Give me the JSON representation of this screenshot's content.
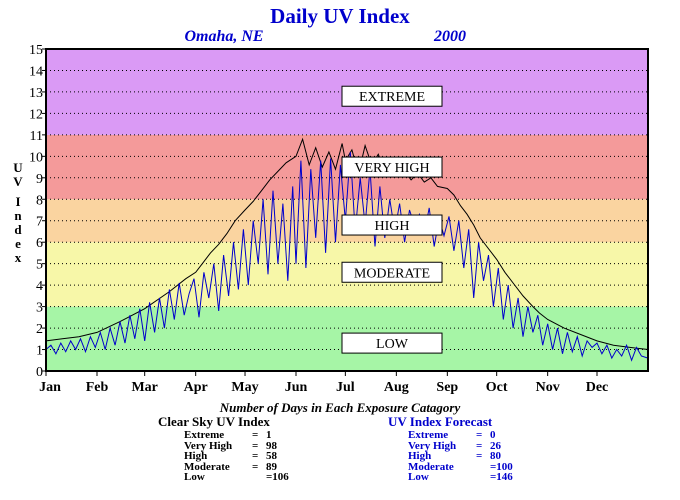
{
  "chart_data": {
    "type": "line",
    "title": "Daily UV Index",
    "location": "Omaha, NE",
    "year": "2000",
    "ylabel": "UV Index",
    "xlabel": "",
    "ylim": [
      0,
      15
    ],
    "xlim": [
      0,
      366
    ],
    "yticks": [
      "0",
      "1",
      "2",
      "3",
      "4",
      "5",
      "6",
      "7",
      "8",
      "9",
      "10",
      "11",
      "12",
      "13",
      "14",
      "15"
    ],
    "months": [
      "Jan",
      "Feb",
      "Mar",
      "Apr",
      "May",
      "Jun",
      "Jul",
      "Aug",
      "Sep",
      "Oct",
      "Nov",
      "Dec"
    ],
    "month_start_days": [
      0,
      31,
      60,
      91,
      121,
      152,
      182,
      213,
      244,
      274,
      305,
      335
    ],
    "bands": [
      {
        "label": "LOW",
        "from": 0,
        "to": 3,
        "color": "#a6f5a6"
      },
      {
        "label": "MODERATE",
        "from": 3,
        "to": 6,
        "color": "#f7f7a8"
      },
      {
        "label": "HIGH",
        "from": 6,
        "to": 8,
        "color": "#fad4a0"
      },
      {
        "label": "VERY HIGH",
        "from": 8,
        "to": 11,
        "color": "#f49a9a"
      },
      {
        "label": "EXTREME",
        "from": 11,
        "to": 15,
        "color": "#da9af5"
      }
    ],
    "band_label_values": {
      "LOW": 1.3,
      "MODERATE": 4.6,
      "HIGH": 6.8,
      "VERY HIGH": 9.5,
      "EXTREME": 12.8
    },
    "grid": true,
    "series": [
      {
        "name": "Clear Sky UV Index",
        "color": "#000000",
        "points": [
          [
            0,
            1.4
          ],
          [
            10,
            1.5
          ],
          [
            20,
            1.6
          ],
          [
            31,
            1.8
          ],
          [
            45,
            2.3
          ],
          [
            60,
            2.9
          ],
          [
            75,
            3.7
          ],
          [
            85,
            4.3
          ],
          [
            91,
            4.6
          ],
          [
            95,
            5.0
          ],
          [
            100,
            5.5
          ],
          [
            105,
            5.9
          ],
          [
            110,
            6.4
          ],
          [
            115,
            7.0
          ],
          [
            121,
            7.5
          ],
          [
            126,
            7.9
          ],
          [
            131,
            8.4
          ],
          [
            136,
            8.9
          ],
          [
            141,
            9.3
          ],
          [
            146,
            9.7
          ],
          [
            152,
            10.0
          ],
          [
            156,
            10.8
          ],
          [
            160,
            9.6
          ],
          [
            164,
            10.4
          ],
          [
            168,
            9.5
          ],
          [
            172,
            10.2
          ],
          [
            176,
            9.4
          ],
          [
            180,
            10.6
          ],
          [
            182,
            9.8
          ],
          [
            186,
            10.3
          ],
          [
            190,
            9.2
          ],
          [
            194,
            10.5
          ],
          [
            198,
            9.6
          ],
          [
            202,
            10.1
          ],
          [
            206,
            9.3
          ],
          [
            210,
            9.5
          ],
          [
            213,
            9.1
          ],
          [
            218,
            9.3
          ],
          [
            222,
            8.9
          ],
          [
            226,
            9.2
          ],
          [
            230,
            8.8
          ],
          [
            234,
            9.0
          ],
          [
            238,
            8.6
          ],
          [
            244,
            8.5
          ],
          [
            248,
            8.2
          ],
          [
            252,
            7.7
          ],
          [
            256,
            7.3
          ],
          [
            260,
            6.8
          ],
          [
            264,
            6.2
          ],
          [
            268,
            5.8
          ],
          [
            274,
            5.2
          ],
          [
            279,
            4.6
          ],
          [
            284,
            4.1
          ],
          [
            290,
            3.5
          ],
          [
            296,
            3.0
          ],
          [
            300,
            2.7
          ],
          [
            305,
            2.4
          ],
          [
            315,
            2.0
          ],
          [
            325,
            1.7
          ],
          [
            335,
            1.4
          ],
          [
            345,
            1.2
          ],
          [
            355,
            1.1
          ],
          [
            366,
            1.0
          ]
        ]
      },
      {
        "name": "UV Index Forecast",
        "color": "#0000cc",
        "points": [
          [
            0,
            1.0
          ],
          [
            3,
            1.2
          ],
          [
            6,
            0.8
          ],
          [
            9,
            1.3
          ],
          [
            12,
            0.9
          ],
          [
            15,
            1.4
          ],
          [
            18,
            1.0
          ],
          [
            21,
            1.5
          ],
          [
            24,
            0.9
          ],
          [
            27,
            1.6
          ],
          [
            30,
            1.1
          ],
          [
            33,
            1.8
          ],
          [
            36,
            1.0
          ],
          [
            39,
            2.0
          ],
          [
            42,
            1.2
          ],
          [
            45,
            2.3
          ],
          [
            48,
            1.3
          ],
          [
            51,
            2.6
          ],
          [
            54,
            1.5
          ],
          [
            57,
            2.9
          ],
          [
            60,
            1.4
          ],
          [
            63,
            3.2
          ],
          [
            66,
            1.8
          ],
          [
            69,
            3.4
          ],
          [
            72,
            2.0
          ],
          [
            75,
            3.8
          ],
          [
            78,
            2.4
          ],
          [
            81,
            4.1
          ],
          [
            84,
            2.6
          ],
          [
            87,
            3.6
          ],
          [
            90,
            4.3
          ],
          [
            93,
            2.5
          ],
          [
            96,
            4.6
          ],
          [
            99,
            3.4
          ],
          [
            102,
            5.0
          ],
          [
            105,
            2.8
          ],
          [
            108,
            5.4
          ],
          [
            111,
            3.5
          ],
          [
            114,
            6.0
          ],
          [
            117,
            3.8
          ],
          [
            120,
            6.6
          ],
          [
            123,
            4.0
          ],
          [
            126,
            7.0
          ],
          [
            129,
            5.0
          ],
          [
            132,
            8.0
          ],
          [
            135,
            4.5
          ],
          [
            138,
            8.4
          ],
          [
            141,
            5.0
          ],
          [
            144,
            7.8
          ],
          [
            147,
            4.2
          ],
          [
            150,
            8.6
          ],
          [
            152,
            5.0
          ],
          [
            155,
            9.8
          ],
          [
            158,
            4.8
          ],
          [
            161,
            9.4
          ],
          [
            164,
            6.2
          ],
          [
            167,
            9.8
          ],
          [
            170,
            5.5
          ],
          [
            173,
            9.9
          ],
          [
            176,
            6.0
          ],
          [
            179,
            9.6
          ],
          [
            182,
            7.0
          ],
          [
            185,
            10.2
          ],
          [
            188,
            6.5
          ],
          [
            191,
            9.0
          ],
          [
            194,
            6.8
          ],
          [
            197,
            9.4
          ],
          [
            200,
            5.8
          ],
          [
            203,
            8.6
          ],
          [
            206,
            6.2
          ],
          [
            209,
            8.0
          ],
          [
            212,
            6.5
          ],
          [
            215,
            7.8
          ],
          [
            218,
            6.0
          ],
          [
            221,
            7.5
          ],
          [
            224,
            6.8
          ],
          [
            227,
            7.3
          ],
          [
            230,
            6.4
          ],
          [
            233,
            7.6
          ],
          [
            236,
            5.8
          ],
          [
            239,
            7.1
          ],
          [
            242,
            6.3
          ],
          [
            245,
            7.2
          ],
          [
            248,
            5.6
          ],
          [
            251,
            7.0
          ],
          [
            254,
            4.8
          ],
          [
            257,
            6.6
          ],
          [
            260,
            3.4
          ],
          [
            263,
            6.0
          ],
          [
            266,
            4.2
          ],
          [
            269,
            5.4
          ],
          [
            272,
            3.0
          ],
          [
            275,
            4.8
          ],
          [
            278,
            2.4
          ],
          [
            281,
            4.0
          ],
          [
            284,
            2.0
          ],
          [
            287,
            3.4
          ],
          [
            290,
            1.6
          ],
          [
            293,
            3.0
          ],
          [
            296,
            1.8
          ],
          [
            299,
            2.6
          ],
          [
            302,
            1.2
          ],
          [
            305,
            2.2
          ],
          [
            308,
            1.0
          ],
          [
            311,
            2.0
          ],
          [
            314,
            0.8
          ],
          [
            317,
            1.8
          ],
          [
            320,
            0.9
          ],
          [
            323,
            1.6
          ],
          [
            326,
            0.7
          ],
          [
            329,
            1.4
          ],
          [
            332,
            1.1
          ],
          [
            335,
            1.3
          ],
          [
            338,
            0.8
          ],
          [
            341,
            1.2
          ],
          [
            344,
            0.6
          ],
          [
            347,
            1.0
          ],
          [
            350,
            0.7
          ],
          [
            353,
            1.2
          ],
          [
            356,
            0.5
          ],
          [
            359,
            1.1
          ],
          [
            362,
            0.7
          ],
          [
            366,
            0.6
          ]
        ]
      }
    ],
    "subtitle": "Number of Days in Each Exposure Catagory",
    "tables": [
      {
        "title": "Clear Sky UV Index",
        "color": "#000000",
        "rows": [
          {
            "label": "Extreme",
            "value": "1"
          },
          {
            "label": "Very High",
            "value": "98"
          },
          {
            "label": "High",
            "value": "58"
          },
          {
            "label": "Moderate",
            "value": "89"
          },
          {
            "label": "Low",
            "value": "=106"
          }
        ]
      },
      {
        "title": "UV Index Forecast",
        "color": "#0000cc",
        "rows": [
          {
            "label": "Extreme",
            "value": "0"
          },
          {
            "label": "Very High",
            "value": "26"
          },
          {
            "label": "High",
            "value": "80"
          },
          {
            "label": "Moderate",
            "value": "=100"
          },
          {
            "label": "Low",
            "value": "=146"
          }
        ]
      }
    ]
  }
}
